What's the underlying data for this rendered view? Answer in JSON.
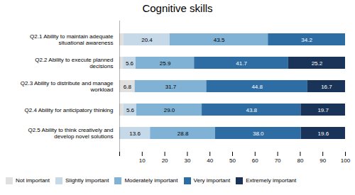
{
  "chart_data": {
    "type": "bar",
    "orientation": "horizontal",
    "stacked": true,
    "title": "Cognitive skills",
    "categories": [
      "Q2.1 Ability to maintain adequate\nsituational awareness",
      "Q2.2 Ability to execute planned\ndecisions",
      "Q2.3 Ability to distribute and manage\nworkload",
      "Q2.4 Ability for anticipatory thinking",
      "Q2.5 Ability to think creatively and\ndevelop novel solutions"
    ],
    "series": [
      {
        "name": "Not important",
        "color": "#e0e0e0",
        "values": [
          1.9,
          1.6,
          6.8,
          1.9,
          0.0
        ],
        "value_labels": [
          null,
          null,
          "6.8",
          null,
          null
        ]
      },
      {
        "name": "Slightly important",
        "color": "#c5d9e8",
        "values": [
          20.4,
          5.6,
          0.0,
          5.6,
          13.6
        ],
        "value_labels": [
          "20.4",
          "5.6",
          null,
          "5.6",
          "13.6"
        ]
      },
      {
        "name": "Moderately important",
        "color": "#7fb2d5",
        "values": [
          43.5,
          25.9,
          31.7,
          29.0,
          28.8
        ],
        "value_labels": [
          "43.5",
          "25.9",
          "31.7",
          "29.0",
          "28.8"
        ]
      },
      {
        "name": "Very important",
        "color": "#2e6da4",
        "values": [
          34.2,
          41.7,
          44.8,
          43.8,
          38.0
        ],
        "value_labels": [
          "34.2",
          "41.7",
          "44.8",
          "43.8",
          "38.0"
        ]
      },
      {
        "name": "Extremely important",
        "color": "#1a3459",
        "values": [
          0.0,
          25.2,
          16.7,
          19.7,
          19.6
        ],
        "value_labels": [
          null,
          "25.2",
          "16.7",
          "19.7",
          "19.6"
        ]
      }
    ],
    "xlim": [
      0,
      100
    ],
    "xticks": [
      {
        "value": 0,
        "label": null
      },
      10,
      20,
      30,
      40,
      50,
      60,
      70,
      80,
      90,
      100
    ],
    "grid": false,
    "legend": "bottom",
    "data_labels": true
  }
}
